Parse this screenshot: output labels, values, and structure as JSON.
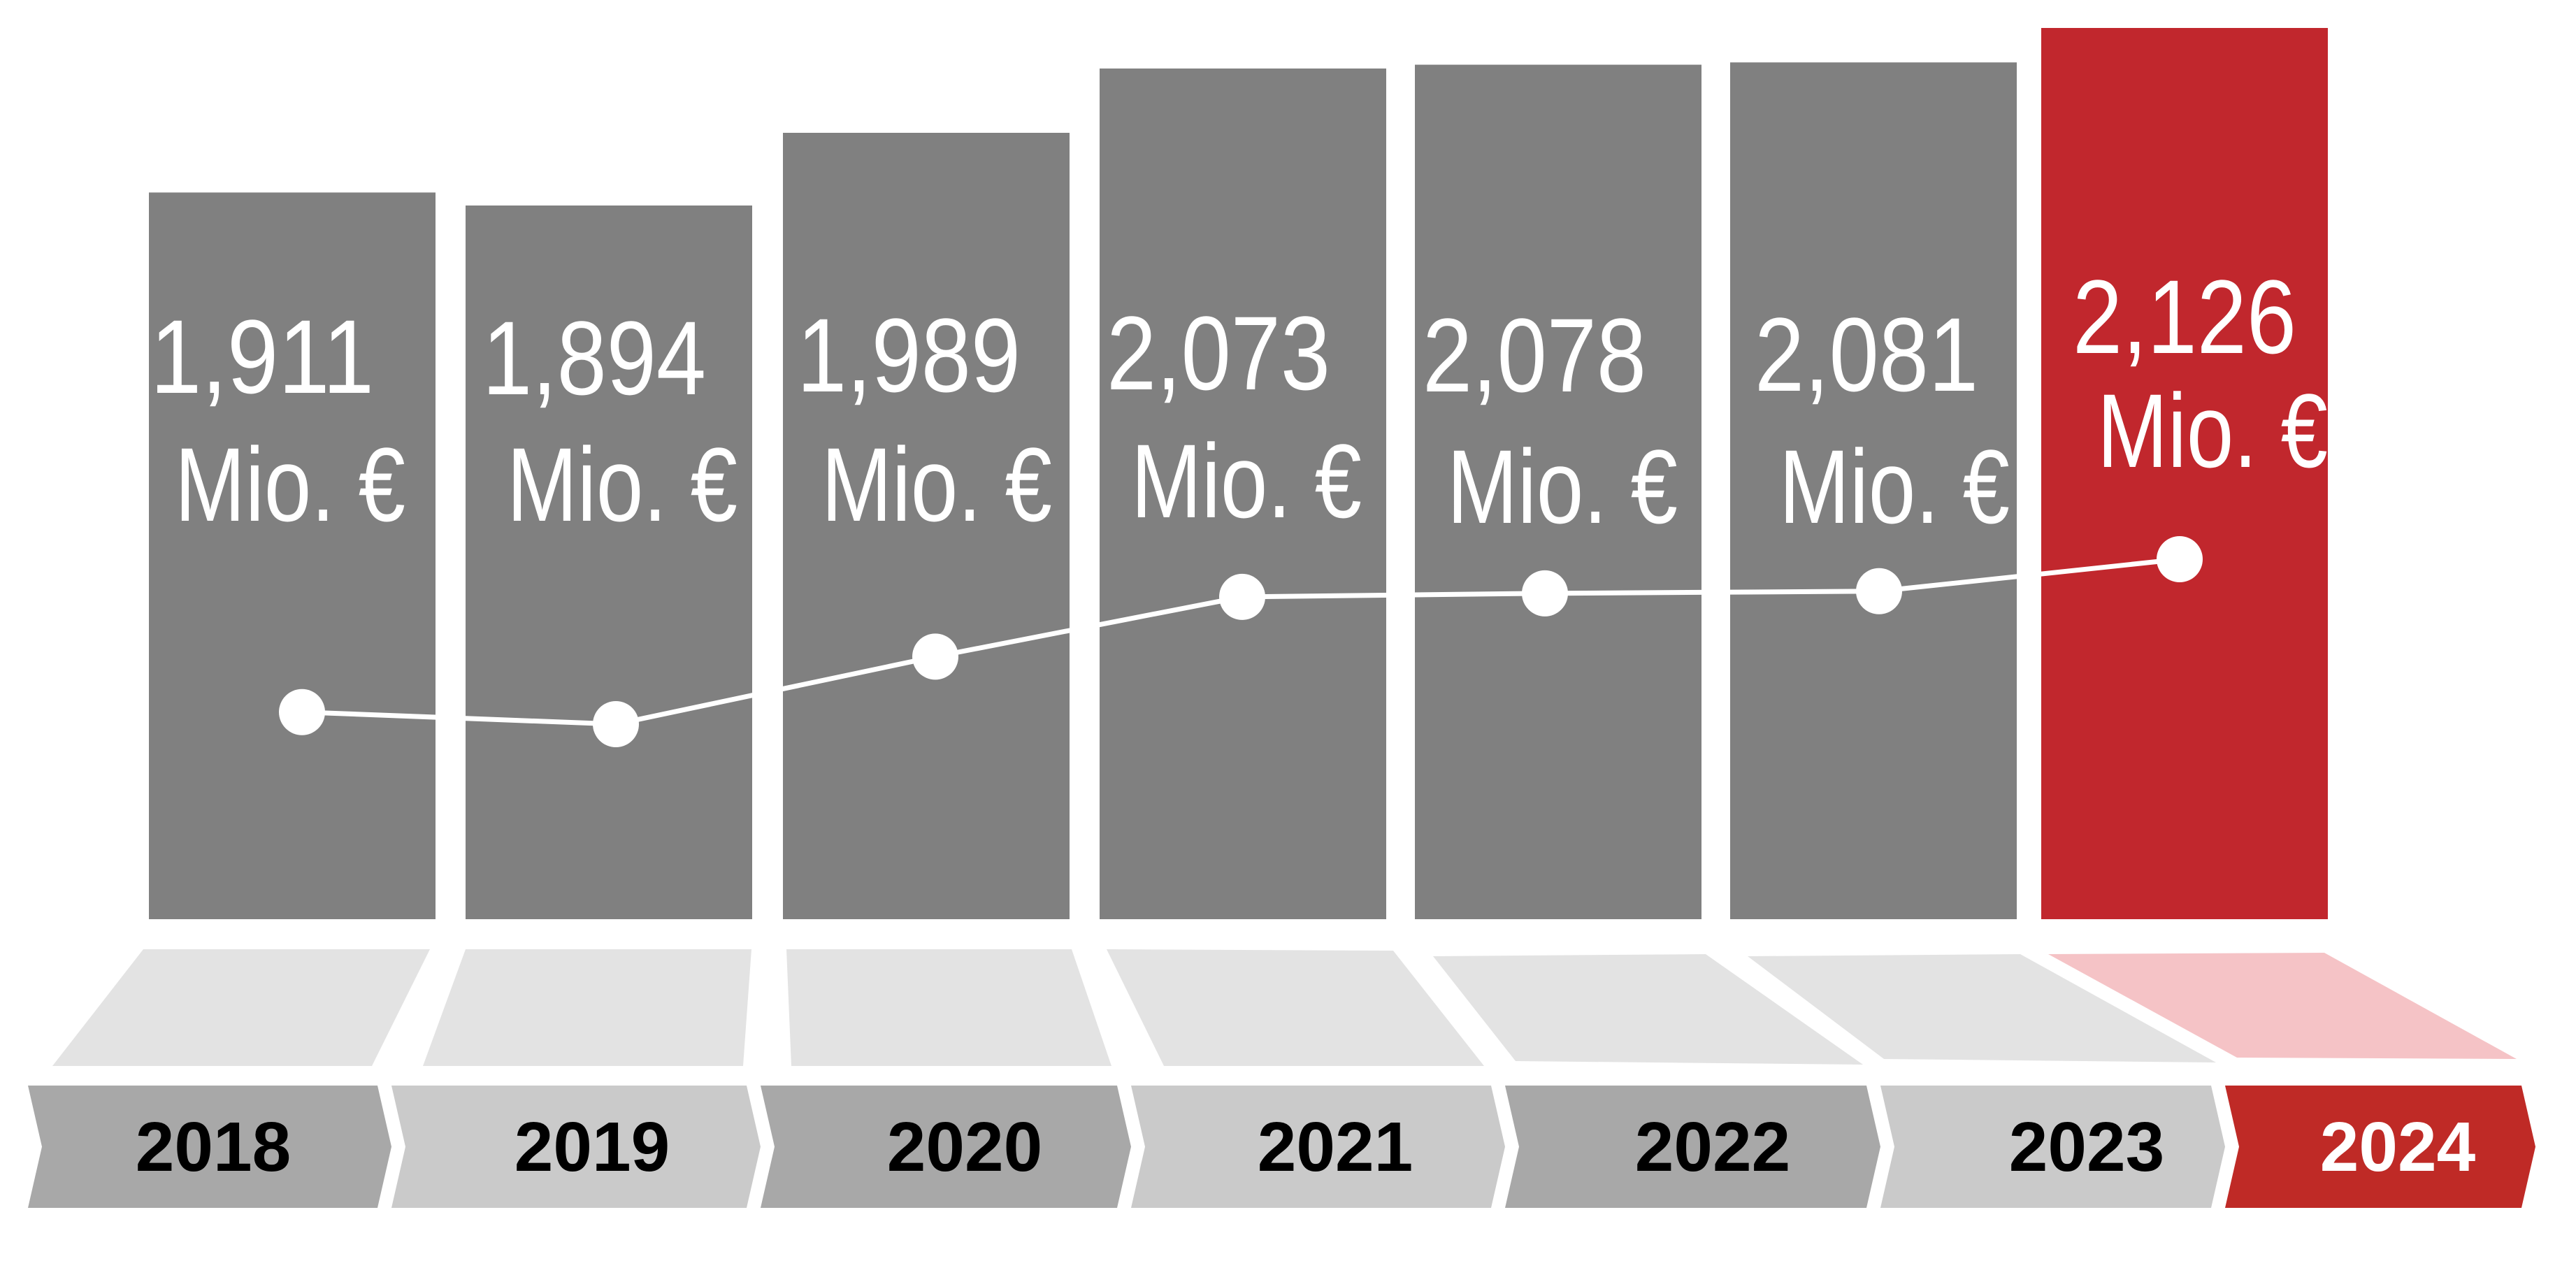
{
  "chart_data": {
    "type": "bar",
    "categories": [
      "2018",
      "2019",
      "2020",
      "2021",
      "2022",
      "2023",
      "2024"
    ],
    "values": [
      1911,
      1894,
      1989,
      2073,
      2078,
      2081,
      2126
    ],
    "value_labels": [
      "1,911",
      "1,894",
      "1,989",
      "2,073",
      "2,078",
      "2,081",
      "2,126"
    ],
    "unit_label": "Mio. €",
    "highlight_index": 6,
    "trend_line": true,
    "colors": {
      "bar": "#808080",
      "bar_highlight": "#c1272d",
      "ramp": "#e3e3e3",
      "ramp_highlight": "#f5c3c6",
      "tab_dark": "#a8a8a8",
      "tab_light": "#cacaca",
      "tab_highlight": "#bf2a26",
      "line": "#ffffff"
    }
  }
}
